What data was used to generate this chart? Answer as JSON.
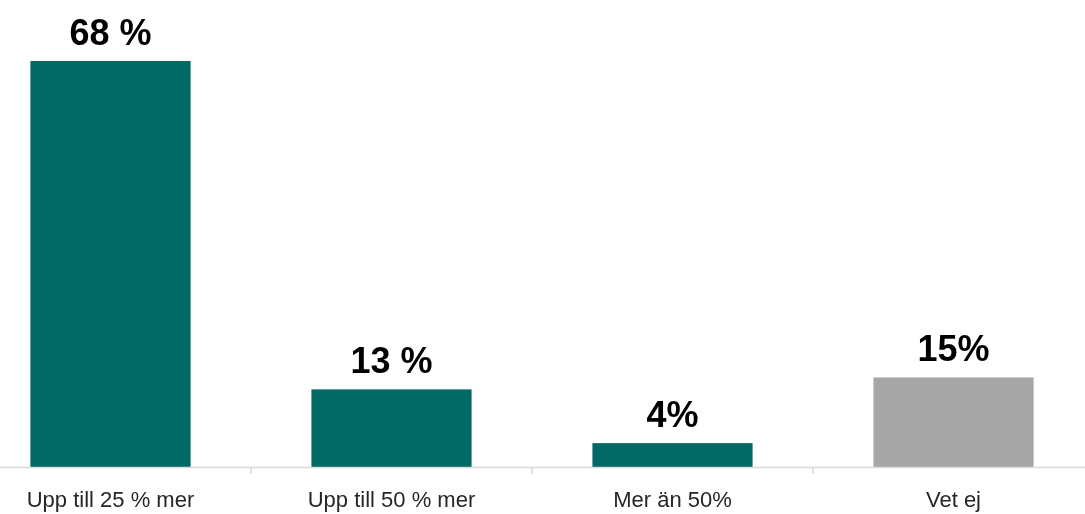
{
  "chart_data": {
    "type": "bar",
    "categories": [
      "Upp till 25 % mer",
      "Upp till 50 % mer",
      "Mer än 50%",
      "Vet ej"
    ],
    "values": [
      68,
      13,
      4,
      15
    ],
    "colors": [
      "#006966",
      "#006966",
      "#006966",
      "#a6a6a6"
    ],
    "value_labels": [
      "68 %",
      "13 %",
      "4%",
      "15%"
    ]
  }
}
